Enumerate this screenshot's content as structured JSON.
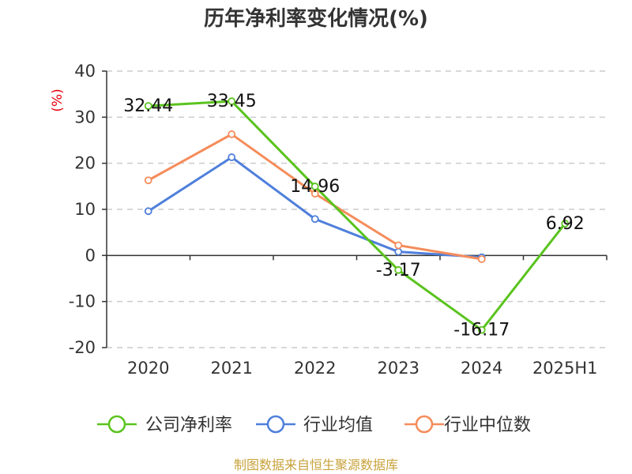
{
  "chart_data": {
    "type": "line",
    "title": "历年净利率变化情况(%)",
    "unit_label": "(%)",
    "categories": [
      "2020",
      "2021",
      "2022",
      "2023",
      "2024",
      "2025H1"
    ],
    "y_ticks": [
      "40",
      "30",
      "20",
      "10",
      "0",
      "-10",
      "-20"
    ],
    "ylim": [
      -20,
      40
    ],
    "grid": true,
    "legend_position": "bottom",
    "series": [
      {
        "name": "公司净利率",
        "color": "#5ac31e",
        "values": [
          32.44,
          33.45,
          14.96,
          -3.17,
          -16.17,
          6.92
        ],
        "labels": [
          "32.44",
          "33.45",
          "14.96",
          "-3.17",
          "-16.17",
          "6.92"
        ]
      },
      {
        "name": "行业均值",
        "color": "#4f7fdb",
        "values": [
          9.6,
          21.3,
          7.9,
          0.8,
          -0.4,
          null
        ]
      },
      {
        "name": "行业中位数",
        "color": "#f58c5a",
        "values": [
          16.3,
          26.3,
          13.4,
          2.2,
          -0.8,
          null
        ]
      }
    ]
  },
  "source": "制图数据来自恒生聚源数据库"
}
